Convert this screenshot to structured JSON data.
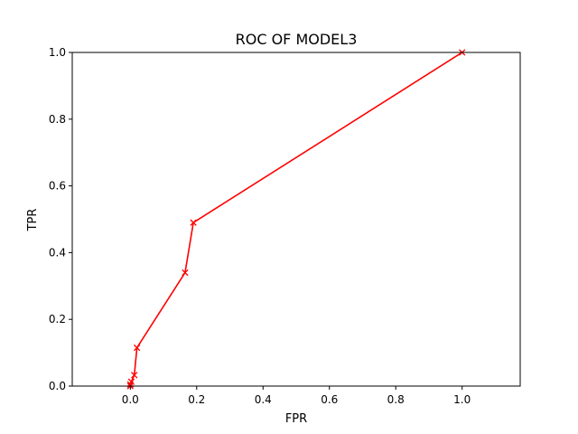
{
  "chart_data": {
    "type": "line",
    "title": "ROC OF MODEL3",
    "xlabel": "FPR",
    "ylabel": "TPR",
    "xlim": [
      -0.175,
      1.175
    ],
    "ylim": [
      0,
      1.0
    ],
    "xticks": [
      "0.0",
      "0.2",
      "0.4",
      "0.6",
      "0.8",
      "1.0"
    ],
    "yticks": [
      "0.0",
      "0.2",
      "0.4",
      "0.6",
      "0.8",
      "1.0"
    ],
    "grid": false,
    "legend": "none",
    "series": [
      {
        "color": "#ff0000",
        "marker": "x",
        "x": [
          0.0,
          0.0,
          0.003,
          0.012,
          0.02,
          0.165,
          0.19,
          1.0
        ],
        "y": [
          0.0,
          0.005,
          0.013,
          0.033,
          0.115,
          0.34,
          0.49,
          1.0
        ]
      }
    ]
  }
}
